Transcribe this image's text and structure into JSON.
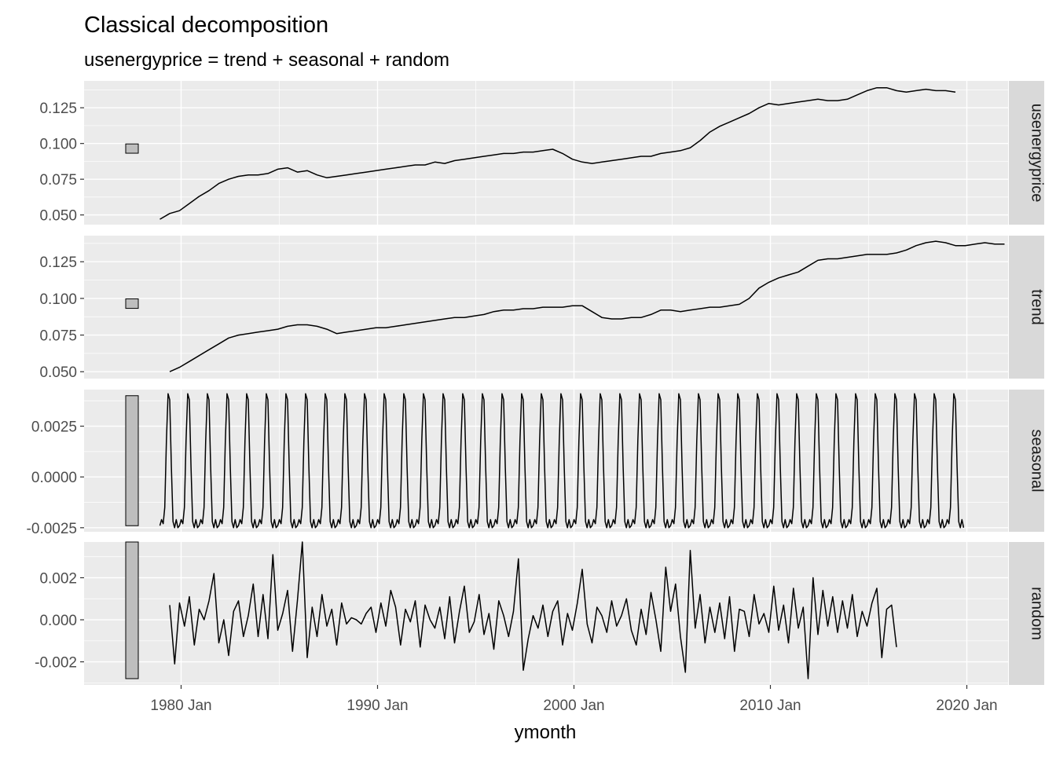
{
  "chart_data": {
    "type": "line",
    "title": "Classical decomposition",
    "subtitle": "usenergyprice = trend + seasonal + random",
    "xlabel": "ymonth",
    "ylabel": "",
    "x_ticks": [
      {
        "value": 1980,
        "label": "1980 Jan"
      },
      {
        "value": 1990,
        "label": "1990 Jan"
      },
      {
        "value": 2000,
        "label": "2000 Jan"
      },
      {
        "value": 2010,
        "label": "2010 Jan"
      },
      {
        "value": 2020,
        "label": "2020 Jan"
      }
    ],
    "xlim": [
      1975.06,
      2022.1
    ],
    "grid": true,
    "colors": {
      "panel_bg": "#ebebeb",
      "grid": "#ffffff",
      "strip_bg": "#d9d9d9",
      "line": "#000000",
      "scale_bar": "#bebebe"
    },
    "panels": [
      {
        "name": "usenergyprice",
        "ylim": [
          0.0432,
          0.1438
        ],
        "yticks": [
          {
            "value": 0.05,
            "label": "0.050"
          },
          {
            "value": 0.075,
            "label": "0.075"
          },
          {
            "value": 0.1,
            "label": "0.100"
          },
          {
            "value": 0.125,
            "label": "0.125"
          }
        ],
        "scale_bar": [
          0.0932,
          0.0997
        ],
        "series": {
          "x_start": 1978.92,
          "step": 0.5,
          "values": [
            0.047,
            0.051,
            0.053,
            0.058,
            0.063,
            0.067,
            0.072,
            0.075,
            0.077,
            0.078,
            0.078,
            0.079,
            0.082,
            0.083,
            0.08,
            0.081,
            0.078,
            0.076,
            0.077,
            0.078,
            0.079,
            0.08,
            0.081,
            0.082,
            0.083,
            0.084,
            0.085,
            0.085,
            0.087,
            0.086,
            0.088,
            0.089,
            0.09,
            0.091,
            0.092,
            0.093,
            0.093,
            0.094,
            0.094,
            0.095,
            0.096,
            0.093,
            0.089,
            0.087,
            0.086,
            0.087,
            0.088,
            0.089,
            0.09,
            0.091,
            0.091,
            0.093,
            0.094,
            0.095,
            0.097,
            0.102,
            0.108,
            0.112,
            0.115,
            0.118,
            0.121,
            0.125,
            0.128,
            0.127,
            0.128,
            0.129,
            0.13,
            0.131,
            0.13,
            0.13,
            0.131,
            0.134,
            0.137,
            0.139,
            0.139,
            0.137,
            0.136,
            0.137,
            0.138,
            0.137,
            0.137,
            0.136
          ]
        }
      },
      {
        "name": "trend",
        "ylim": [
          0.0453,
          0.1428
        ],
        "yticks": [
          {
            "value": 0.05,
            "label": "0.050"
          },
          {
            "value": 0.075,
            "label": "0.075"
          },
          {
            "value": 0.1,
            "label": "0.100"
          },
          {
            "value": 0.125,
            "label": "0.125"
          }
        ],
        "scale_bar": [
          0.0932,
          0.0997
        ],
        "series": {
          "x_start": 1979.42,
          "step": 0.5,
          "values": [
            0.05,
            0.053,
            0.057,
            0.061,
            0.065,
            0.069,
            0.073,
            0.075,
            0.076,
            0.077,
            0.078,
            0.079,
            0.081,
            0.082,
            0.082,
            0.081,
            0.079,
            0.076,
            0.077,
            0.078,
            0.079,
            0.08,
            0.08,
            0.081,
            0.082,
            0.083,
            0.084,
            0.085,
            0.086,
            0.087,
            0.087,
            0.088,
            0.089,
            0.091,
            0.092,
            0.092,
            0.093,
            0.093,
            0.094,
            0.094,
            0.094,
            0.095,
            0.095,
            0.091,
            0.087,
            0.086,
            0.086,
            0.087,
            0.087,
            0.089,
            0.092,
            0.092,
            0.091,
            0.092,
            0.093,
            0.094,
            0.094,
            0.095,
            0.096,
            0.1,
            0.107,
            0.111,
            0.114,
            0.116,
            0.118,
            0.122,
            0.126,
            0.127,
            0.127,
            0.128,
            0.129,
            0.13,
            0.13,
            0.13,
            0.131,
            0.133,
            0.136,
            0.138,
            0.139,
            0.138,
            0.136,
            0.136,
            0.137,
            0.138,
            0.137,
            0.137
          ]
        }
      },
      {
        "name": "seasonal",
        "ylim": [
          -0.0027,
          0.0043
        ],
        "yticks": [
          {
            "value": -0.0025,
            "label": "-0.0025"
          },
          {
            "value": 0.0,
            "label": "0.0000"
          },
          {
            "value": 0.0025,
            "label": "0.0025"
          }
        ],
        "scale_bar": [
          -0.0024,
          0.004
        ],
        "series": {
          "x_start": 1978.92,
          "step": 0.0833333,
          "repeat_years": 41,
          "pattern": [
            -0.0024,
            -0.0021,
            -0.0023,
            -0.0015,
            0.0018,
            0.0041,
            0.0038,
            0.0005,
            -0.0022,
            -0.0025,
            -0.0021,
            -0.0025
          ]
        }
      },
      {
        "name": "random",
        "ylim": [
          -0.0031,
          0.0037
        ],
        "yticks": [
          {
            "value": -0.002,
            "label": "-0.002"
          },
          {
            "value": 0.0,
            "label": "0.000"
          },
          {
            "value": 0.002,
            "label": "0.002"
          }
        ],
        "scale_bar": [
          -0.0028,
          0.0037
        ],
        "series": {
          "x_start": 1979.42,
          "step": 0.25,
          "values": [
            0.0007,
            -0.0021,
            0.0008,
            -0.0003,
            0.0011,
            -0.0012,
            0.0005,
            0.0,
            0.0009,
            0.0022,
            -0.0011,
            0.0,
            -0.0017,
            0.0004,
            0.0009,
            -0.0008,
            0.0002,
            0.0017,
            -0.0008,
            0.0012,
            -0.0009,
            0.0031,
            -0.0005,
            0.0003,
            0.0014,
            -0.0015,
            0.0009,
            0.0037,
            -0.0018,
            0.0006,
            -0.0008,
            0.0012,
            -0.0003,
            0.0005,
            -0.0012,
            0.0008,
            -0.0002,
            0.0001,
            0.0,
            -0.0002,
            0.0003,
            0.0006,
            -0.0006,
            0.0008,
            -0.0003,
            0.0014,
            0.0006,
            -0.0012,
            0.0005,
            -0.0001,
            0.0009,
            -0.0013,
            0.0007,
            0.0,
            -0.0004,
            0.0006,
            -0.0009,
            0.0011,
            -0.0011,
            0.0004,
            0.0016,
            -0.0006,
            -0.0001,
            0.0012,
            -0.0007,
            0.0003,
            -0.0014,
            0.0009,
            0.0002,
            -0.0008,
            0.0004,
            0.0029,
            -0.0024,
            -0.0009,
            0.0002,
            -0.0004,
            0.0007,
            -0.0008,
            0.0004,
            0.0009,
            -0.0012,
            0.0003,
            -0.0005,
            0.0008,
            0.0024,
            -0.0002,
            -0.0011,
            0.0006,
            0.0002,
            -0.0006,
            0.0009,
            -0.0003,
            0.0002,
            0.001,
            -0.0005,
            -0.0012,
            0.0005,
            -0.0007,
            0.0013,
            0.0,
            -0.0015,
            0.0025,
            0.0004,
            0.0017,
            -0.0008,
            -0.0025,
            0.0033,
            -0.0004,
            0.0012,
            -0.0011,
            0.0006,
            -0.0006,
            0.0008,
            -0.0009,
            0.0011,
            -0.0015,
            0.0005,
            0.0004,
            -0.0008,
            0.0012,
            -0.0002,
            0.0003,
            -0.0006,
            0.0016,
            -0.0005,
            0.0007,
            -0.0011,
            0.0015,
            -0.0004,
            0.0006,
            -0.0028,
            0.002,
            -0.0007,
            0.0014,
            -0.0003,
            0.0011,
            -0.0006,
            0.0009,
            -0.0004,
            0.0012,
            -0.0008,
            0.0004,
            -0.0003,
            0.0008,
            0.0015,
            -0.0018,
            0.0005,
            0.0007,
            -0.0013
          ]
        }
      }
    ]
  }
}
